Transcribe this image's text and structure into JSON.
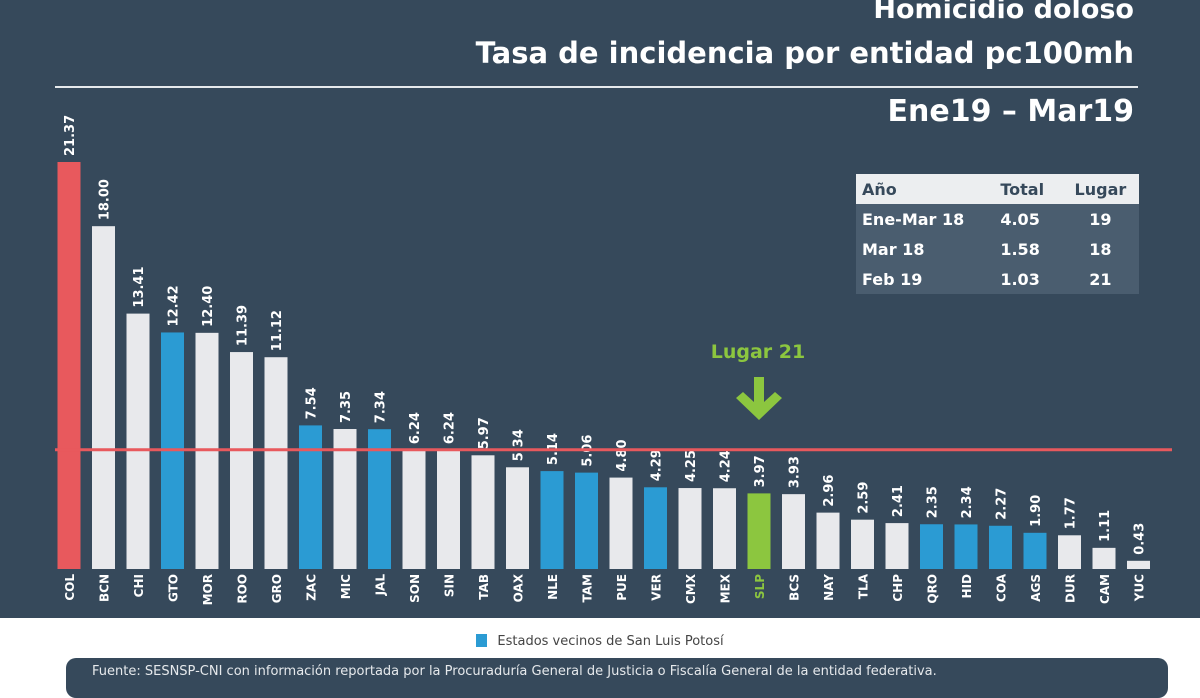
{
  "header": {
    "title_line1": "Homicidio doloso",
    "title_line2": "Tasa de incidencia por entidad pc100mh",
    "period": "Ene19 – Mar19"
  },
  "summary_table": {
    "headers": [
      "Año",
      "Total",
      "Lugar"
    ],
    "rows": [
      [
        "Ene-Mar 18",
        "4.05",
        "19"
      ],
      [
        "Mar 18",
        "1.58",
        "18"
      ],
      [
        "Feb 19",
        "1.03",
        "21"
      ]
    ]
  },
  "annotation": {
    "text": "Lugar 21",
    "target": "SLP"
  },
  "legend": {
    "label": "Estados vecinos de San Luis Potosí"
  },
  "footer": {
    "text": "Fuente: SESNSP-CNI con información reportada por la Procuraduría General de Justicia o Fiscalía General de la entidad federativa."
  },
  "colors": {
    "background": "#36495b",
    "highest": "#e8595d",
    "default": "#e8e9ec",
    "neighbor": "#2b9bd3",
    "highlight": "#8cc63f",
    "reference_line": "#e8595d"
  },
  "chart_data": {
    "type": "bar",
    "title": "Homicidio doloso - Tasa de incidencia por entidad pc100mh",
    "subtitle": "Ene19 – Mar19",
    "xlabel": "",
    "ylabel": "",
    "ylim": [
      0,
      21.37
    ],
    "grid": false,
    "legend_position": "bottom",
    "reference_line": 6.26,
    "categories": [
      "COL",
      "BCN",
      "CHI",
      "GTO",
      "MOR",
      "ROO",
      "GRO",
      "ZAC",
      "MIC",
      "JAL",
      "SON",
      "SIN",
      "TAB",
      "OAX",
      "NLE",
      "TAM",
      "PUE",
      "VER",
      "CMX",
      "MEX",
      "SLP",
      "BCS",
      "NAY",
      "TLA",
      "CHP",
      "QRO",
      "HID",
      "COA",
      "AGS",
      "DUR",
      "CAM",
      "YUC"
    ],
    "values": [
      21.37,
      18.0,
      13.41,
      12.42,
      12.4,
      11.39,
      11.12,
      7.54,
      7.35,
      7.34,
      6.24,
      6.24,
      5.97,
      5.34,
      5.14,
      5.06,
      4.8,
      4.29,
      4.25,
      4.24,
      3.97,
      3.93,
      2.96,
      2.59,
      2.41,
      2.35,
      2.34,
      2.27,
      1.9,
      1.77,
      1.11,
      0.43
    ],
    "labels": [
      "21.37",
      "18.00",
      "13.41",
      "12.42",
      "12.40",
      "11.39",
      "11.12",
      "7.54",
      "7.35",
      "7.34",
      "6.24",
      "6.24",
      "5.97",
      "5.34",
      "5.14",
      "5.06",
      "4.80",
      "4.29",
      "4.25",
      "4.24",
      "3.97",
      "3.93",
      "2.96",
      "2.59",
      "2.41",
      "2.35",
      "2.34",
      "2.27",
      "1.90",
      "1.77",
      "1.11",
      "0.43"
    ],
    "groups": [
      "highest",
      "default",
      "default",
      "neighbor",
      "default",
      "default",
      "default",
      "neighbor",
      "default",
      "neighbor",
      "default",
      "default",
      "default",
      "default",
      "neighbor",
      "neighbor",
      "default",
      "neighbor",
      "default",
      "default",
      "highlight",
      "default",
      "default",
      "default",
      "default",
      "neighbor",
      "neighbor",
      "neighbor",
      "neighbor",
      "default",
      "default",
      "default"
    ]
  }
}
